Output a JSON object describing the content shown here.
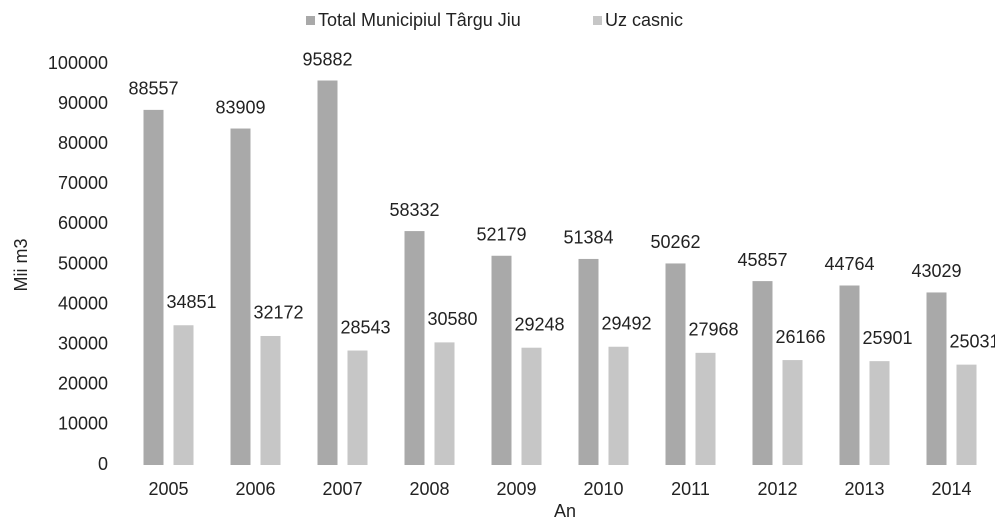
{
  "chart_data": {
    "type": "bar",
    "categories": [
      "2005",
      "2006",
      "2007",
      "2008",
      "2009",
      "2010",
      "2011",
      "2012",
      "2013",
      "2014"
    ],
    "series": [
      {
        "name": "Total Municipiul Târgu Jiu",
        "color": "#a9a9a9",
        "values": [
          88557,
          83909,
          95882,
          58332,
          52179,
          51384,
          50262,
          45857,
          44764,
          43029
        ]
      },
      {
        "name": "Uz casnic",
        "color": "#c6c6c6",
        "values": [
          34851,
          32172,
          28543,
          30580,
          29248,
          29492,
          27968,
          26166,
          25901,
          25031
        ]
      }
    ],
    "xlabel": "An",
    "ylabel": "Mii  m3",
    "ylim": [
      0,
      100000
    ],
    "yticks": [
      0,
      10000,
      20000,
      30000,
      40000,
      50000,
      60000,
      70000,
      80000,
      90000,
      100000
    ],
    "grid": false,
    "legend": "top"
  }
}
